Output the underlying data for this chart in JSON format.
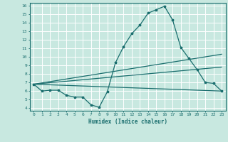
{
  "xlabel": "Humidex (Indice chaleur)",
  "xlim": [
    -0.5,
    23.5
  ],
  "ylim": [
    3.7,
    16.3
  ],
  "yticks": [
    4,
    5,
    6,
    7,
    8,
    9,
    10,
    11,
    12,
    13,
    14,
    15,
    16
  ],
  "xticks": [
    0,
    1,
    2,
    3,
    4,
    5,
    6,
    7,
    8,
    9,
    10,
    11,
    12,
    13,
    14,
    15,
    16,
    17,
    18,
    19,
    20,
    21,
    22,
    23
  ],
  "bg_color": "#c8e8e0",
  "grid_color": "#b0d8d0",
  "line_color": "#1a6e6e",
  "line1_x": [
    0,
    1,
    2,
    3,
    4,
    5,
    6,
    7,
    8,
    9,
    10,
    11,
    12,
    13,
    14,
    15,
    16,
    17,
    18,
    19,
    20,
    21,
    22,
    23
  ],
  "line1_y": [
    6.8,
    6.0,
    6.1,
    6.1,
    5.5,
    5.3,
    5.3,
    4.4,
    4.1,
    5.9,
    9.3,
    11.2,
    12.7,
    13.7,
    15.1,
    15.5,
    15.9,
    14.3,
    11.1,
    9.8,
    8.5,
    7.0,
    6.9,
    6.0
  ],
  "line2_x": [
    0,
    23
  ],
  "line2_y": [
    6.8,
    6.0
  ],
  "line3_x": [
    0,
    23
  ],
  "line3_y": [
    6.8,
    10.3
  ],
  "line4_x": [
    0,
    23
  ],
  "line4_y": [
    6.8,
    8.8
  ]
}
